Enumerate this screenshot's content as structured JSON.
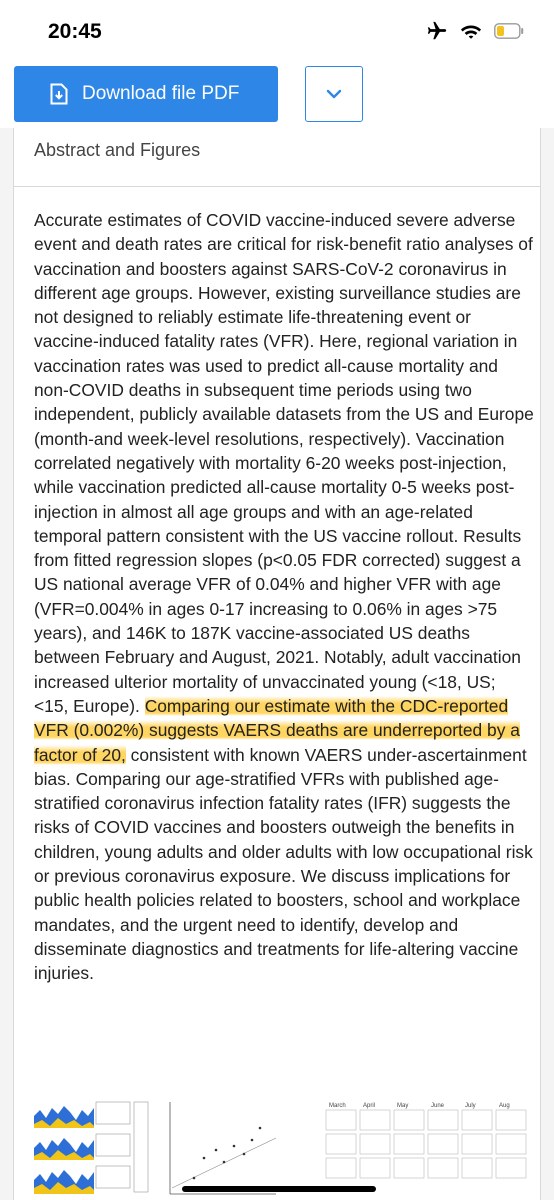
{
  "status_bar": {
    "time": "20:45",
    "icons": [
      "airplane-icon",
      "wifi-icon",
      "battery-icon"
    ],
    "battery_color": "#f4c21f"
  },
  "toolbar": {
    "download_label": "Download file PDF",
    "download_icon": "download-file-icon",
    "more_icon": "chevron-down-icon",
    "accent_color": "#2e87e6"
  },
  "section": {
    "title": "Abstract and Figures"
  },
  "abstract": {
    "text_before": "Accurate estimates of COVID vaccine-induced severe adverse event and death rates are critical for risk-benefit ratio analyses of vaccination and boosters against SARS-CoV-2 coronavirus in different age groups. However, existing surveillance studies are not designed to reliably estimate life-threatening event or vaccine-induced fatality rates (VFR). Here, regional variation in vaccination rates was used to predict all-cause mortality and non-COVID deaths in subsequent time periods using two independent, publicly available datasets from the US and Europe (month-and week-level resolutions, respectively). Vaccination correlated negatively with mortality 6-20 weeks post-injection, while vaccination predicted all-cause mortality 0-5 weeks post-injection in almost all age groups and with an age-related temporal pattern consistent with the US vaccine rollout. Results from fitted regression slopes (p<0.05 FDR corrected) suggest a US national average VFR of 0.04% and higher VFR with age (VFR=0.004% in ages 0-17 increasing to 0.06% in ages >75 years), and 146K to 187K vaccine-associated US deaths between February and August, 2021. Notably, adult vaccination increased ulterior mortality of unvaccinated young (<18, US; <15, Europe). ",
    "text_highlighted": "Comparing our estimate with the CDC-reported VFR (0.002%) suggests VAERS deaths are underreported by a factor of 20,",
    "text_after": " consistent with known VAERS under-ascertainment bias. Comparing our age-stratified VFRs with published age-stratified coronavirus infection fatality rates (IFR) suggests the risks of COVID vaccines and boosters outweigh the benefits in children, young adults and older adults with low occupational risk or previous coronavirus exposure. We discuss implications for public health policies related to boosters, school and workplace mandates, and the urgent need to identify, develop and disseminate diagnostics and treatments for life-altering vaccine injuries.",
    "highlight_color": "#ffce46"
  },
  "figures": {
    "months": [
      "March",
      "April",
      "May",
      "June",
      "July",
      "Aug"
    ]
  }
}
